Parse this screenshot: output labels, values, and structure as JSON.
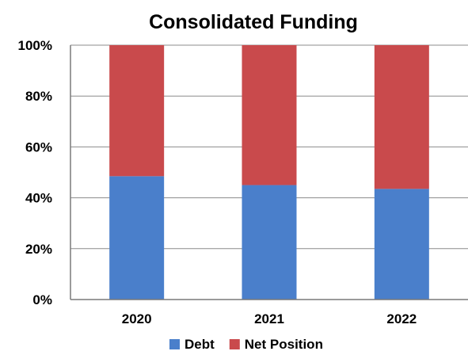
{
  "chart_data": {
    "type": "bar",
    "stacked": true,
    "title": "Consolidated Funding",
    "xlabel": "",
    "ylabel": "",
    "categories": [
      "2020",
      "2021",
      "2022"
    ],
    "series": [
      {
        "name": "Debt",
        "values": [
          48.5,
          45,
          43.5
        ],
        "color": "#4a7fcb"
      },
      {
        "name": "Net Position",
        "values": [
          51.5,
          55,
          56.5
        ],
        "color": "#c94a4c"
      }
    ],
    "ylim": [
      0,
      100
    ],
    "yticks": [
      "0%",
      "20%",
      "40%",
      "60%",
      "80%",
      "100%"
    ],
    "grid": true,
    "legend_position": "bottom"
  }
}
